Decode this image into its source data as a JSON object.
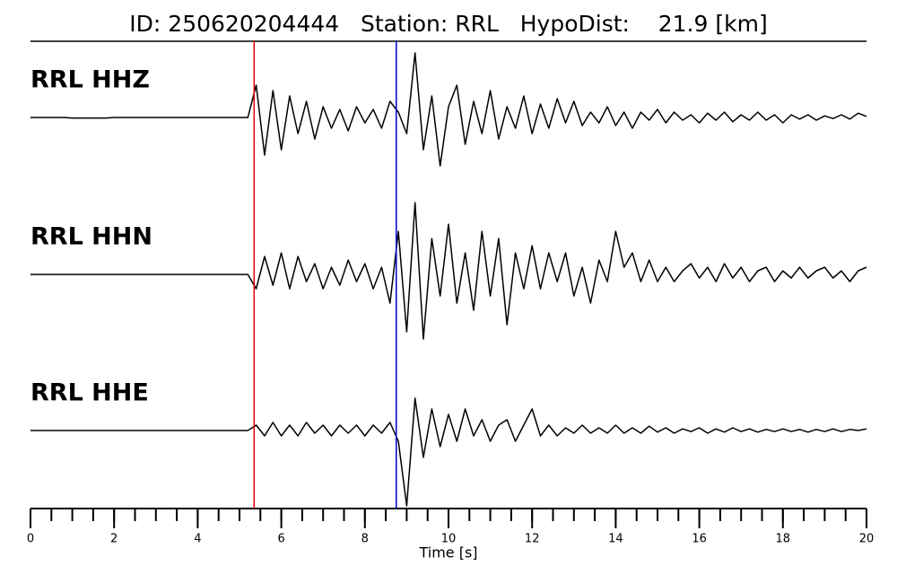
{
  "chart_data": {
    "type": "line",
    "title": "ID: 250620204444   Station: RRL   HypoDist:    21.9 [km]",
    "x_label": "Time [s]",
    "xlim": [
      0,
      20
    ],
    "xticks": [
      0,
      2,
      4,
      6,
      8,
      10,
      12,
      14,
      16,
      18,
      20
    ],
    "xminor_step": 0.5,
    "label_color": "#4c9a00",
    "vlines": [
      {
        "x": 5.35,
        "color": "#e00000"
      },
      {
        "x": 8.75,
        "color": "#0000cc"
      }
    ],
    "x": [
      0,
      0.2,
      0.4,
      0.6,
      0.8,
      1,
      1.2,
      1.4,
      1.6,
      1.8,
      2,
      2.2,
      2.4,
      2.6,
      2.8,
      3,
      3.2,
      3.4,
      3.6,
      3.8,
      4,
      4.2,
      4.4,
      4.6,
      4.8,
      5,
      5.2,
      5.4,
      5.6,
      5.8,
      6,
      6.2,
      6.4,
      6.6,
      6.8,
      7,
      7.2,
      7.4,
      7.6,
      7.8,
      8,
      8.2,
      8.4,
      8.6,
      8.8,
      9,
      9.2,
      9.4,
      9.6,
      9.8,
      10,
      10.2,
      10.4,
      10.6,
      10.8,
      11,
      11.2,
      11.4,
      11.6,
      11.8,
      12,
      12.2,
      12.4,
      12.6,
      12.8,
      13,
      13.2,
      13.4,
      13.6,
      13.8,
      14,
      14.2,
      14.4,
      14.6,
      14.8,
      15,
      15.2,
      15.4,
      15.6,
      15.8,
      16,
      16.2,
      16.4,
      16.6,
      16.8,
      17,
      17.2,
      17.4,
      17.6,
      17.8,
      18,
      18.2,
      18.4,
      18.6,
      18.8,
      19,
      19.2,
      19.4,
      19.6,
      19.8,
      20
    ],
    "series": [
      {
        "name": "RRL HHZ",
        "color": "#000000",
        "values": [
          0,
          0,
          0,
          0,
          0,
          -0.01,
          -0.01,
          -0.01,
          -0.01,
          -0.01,
          0,
          0,
          0,
          0,
          0,
          0,
          0,
          0,
          0,
          0,
          0,
          0,
          0,
          0,
          0,
          0,
          0,
          0.6,
          -0.7,
          0.5,
          -0.6,
          0.4,
          -0.3,
          0.3,
          -0.4,
          0.2,
          -0.2,
          0.15,
          -0.25,
          0.2,
          -0.1,
          0.15,
          -0.2,
          0.3,
          0.1,
          -0.3,
          1.2,
          -0.6,
          0.4,
          -0.9,
          0.2,
          0.6,
          -0.5,
          0.3,
          -0.3,
          0.5,
          -0.4,
          0.2,
          -0.2,
          0.4,
          -0.3,
          0.25,
          -0.2,
          0.35,
          -0.1,
          0.3,
          -0.15,
          0.1,
          -0.1,
          0.2,
          -0.15,
          0.1,
          -0.2,
          0.1,
          -0.05,
          0.15,
          -0.1,
          0.1,
          -0.05,
          0.05,
          -0.1,
          0.08,
          -0.05,
          0.1,
          -0.08,
          0.05,
          -0.05,
          0.1,
          -0.05,
          0.05,
          -0.1,
          0.05,
          -0.03,
          0.05,
          -0.05,
          0.03,
          -0.02,
          0.05,
          -0.03,
          0.08,
          0.02
        ]
      },
      {
        "name": "RRL HHN",
        "color": "#000000",
        "values": [
          0,
          0,
          0,
          0,
          0,
          0,
          0,
          0,
          0,
          0,
          0,
          0,
          0,
          0,
          0,
          0,
          0,
          0,
          0,
          0,
          0,
          0,
          0,
          0,
          0,
          0,
          0,
          -0.2,
          0.25,
          -0.15,
          0.3,
          -0.2,
          0.25,
          -0.1,
          0.15,
          -0.2,
          0.1,
          -0.15,
          0.2,
          -0.1,
          0.15,
          -0.2,
          0.1,
          -0.4,
          0.6,
          -0.8,
          1.0,
          -0.9,
          0.5,
          -0.3,
          0.7,
          -0.4,
          0.3,
          -0.5,
          0.6,
          -0.3,
          0.5,
          -0.7,
          0.3,
          -0.2,
          0.4,
          -0.2,
          0.3,
          -0.1,
          0.3,
          -0.3,
          0.1,
          -0.4,
          0.2,
          -0.1,
          0.6,
          0.1,
          0.3,
          -0.1,
          0.2,
          -0.1,
          0.1,
          -0.1,
          0.05,
          0.15,
          -0.05,
          0.1,
          -0.1,
          0.15,
          -0.05,
          0.1,
          -0.1,
          0.05,
          0.1,
          -0.1,
          0.05,
          -0.05,
          0.1,
          -0.05,
          0.05,
          0.1,
          -0.05,
          0.05,
          -0.1,
          0.05,
          0.1
        ]
      },
      {
        "name": "RRL HHE",
        "color": "#000000",
        "values": [
          0,
          0,
          0,
          0,
          0,
          0,
          0,
          0,
          0,
          0,
          0,
          0,
          0,
          0,
          0,
          0,
          0,
          0,
          0,
          0,
          0,
          0,
          0,
          0,
          0,
          0,
          0,
          0.1,
          -0.1,
          0.15,
          -0.1,
          0.1,
          -0.1,
          0.15,
          -0.05,
          0.1,
          -0.1,
          0.1,
          -0.05,
          0.1,
          -0.1,
          0.1,
          -0.05,
          0.15,
          -0.2,
          -1.4,
          0.6,
          -0.5,
          0.4,
          -0.3,
          0.3,
          -0.2,
          0.4,
          -0.1,
          0.2,
          -0.2,
          0.1,
          0.2,
          -0.2,
          0.1,
          0.4,
          -0.1,
          0.1,
          -0.1,
          0.05,
          -0.05,
          0.1,
          -0.05,
          0.05,
          -0.05,
          0.1,
          -0.05,
          0.05,
          -0.05,
          0.08,
          -0.03,
          0.05,
          -0.05,
          0.03,
          -0.02,
          0.05,
          -0.05,
          0.03,
          -0.03,
          0.05,
          -0.02,
          0.03,
          -0.03,
          0.02,
          -0.02,
          0.03,
          -0.02,
          0.02,
          -0.03,
          0.02,
          -0.02,
          0.03,
          -0.02,
          0.02,
          0,
          0.03
        ]
      }
    ]
  }
}
